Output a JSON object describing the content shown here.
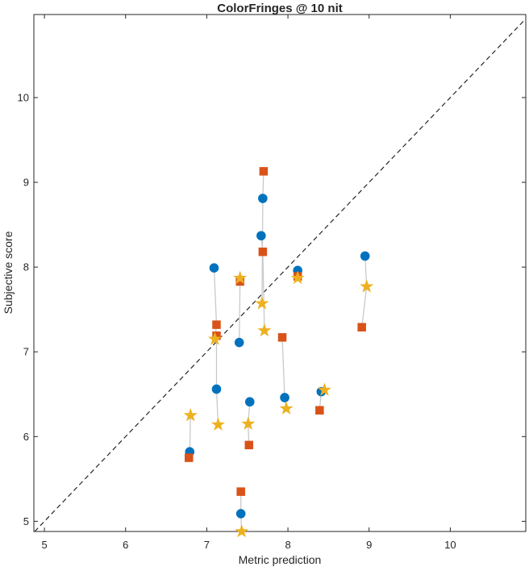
{
  "figure": {
    "title": "ColorFringes @ 10 nit",
    "xlabel": "Metric prediction",
    "ylabel": "Subjective score"
  },
  "chart_data": {
    "type": "scatter",
    "title": "ColorFringes @ 10 nit",
    "xlabel": "Metric prediction",
    "ylabel": "Subjective score",
    "xlim": [
      4.87,
      10.93
    ],
    "ylim": [
      4.88,
      10.98
    ],
    "x_ticks": [
      5,
      6,
      7,
      8,
      9,
      10
    ],
    "y_ticks": [
      5,
      6,
      7,
      8,
      9,
      10
    ],
    "grid": false,
    "legend": "none",
    "box": true,
    "identity_line": {
      "style": "dashed",
      "color": "#262626",
      "span": [
        4.88,
        10.93
      ]
    },
    "connector_color": "#c9c9c9",
    "series": [
      {
        "name": "blue-circle",
        "marker": "circle",
        "color": "#0072BD"
      },
      {
        "name": "orange-square",
        "marker": "square",
        "color": "#D95319"
      },
      {
        "name": "yellow-star",
        "marker": "star",
        "color": "#EDB120"
      }
    ],
    "groups": [
      {
        "points": [
          {
            "marker": "square",
            "x": 7.7,
            "y": 9.13
          },
          {
            "marker": "circle",
            "x": 7.69,
            "y": 8.81
          },
          {
            "marker": "star",
            "x": 7.68,
            "y": 7.57
          }
        ]
      },
      {
        "points": [
          {
            "marker": "circle",
            "x": 7.67,
            "y": 8.37
          },
          {
            "marker": "square",
            "x": 7.69,
            "y": 8.18
          },
          {
            "marker": "star",
            "x": 7.71,
            "y": 7.25
          }
        ]
      },
      {
        "points": [
          {
            "marker": "circle",
            "x": 7.09,
            "y": 7.99
          },
          {
            "marker": "square",
            "x": 7.12,
            "y": 7.32
          },
          {
            "marker": "star",
            "x": 7.1,
            "y": 7.15
          }
        ]
      },
      {
        "points": [
          {
            "marker": "square",
            "x": 7.12,
            "y": 7.19
          },
          {
            "marker": "circle",
            "x": 7.12,
            "y": 6.56
          },
          {
            "marker": "star",
            "x": 7.14,
            "y": 6.14
          }
        ]
      },
      {
        "points": [
          {
            "marker": "star",
            "x": 7.41,
            "y": 7.87
          },
          {
            "marker": "square",
            "x": 7.41,
            "y": 7.83
          },
          {
            "marker": "circle",
            "x": 7.4,
            "y": 7.11
          }
        ]
      },
      {
        "points": [
          {
            "marker": "circle",
            "x": 8.12,
            "y": 7.96
          },
          {
            "marker": "square",
            "x": 8.12,
            "y": 7.89
          },
          {
            "marker": "star",
            "x": 8.12,
            "y": 7.87
          }
        ]
      },
      {
        "points": [
          {
            "marker": "square",
            "x": 7.93,
            "y": 7.17
          },
          {
            "marker": "circle",
            "x": 7.96,
            "y": 6.46
          },
          {
            "marker": "star",
            "x": 7.98,
            "y": 6.33
          }
        ]
      },
      {
        "points": [
          {
            "marker": "circle",
            "x": 7.53,
            "y": 6.41
          },
          {
            "marker": "star",
            "x": 7.51,
            "y": 6.15
          },
          {
            "marker": "square",
            "x": 7.52,
            "y": 5.9
          }
        ]
      },
      {
        "points": [
          {
            "marker": "star",
            "x": 6.8,
            "y": 6.25
          },
          {
            "marker": "circle",
            "x": 6.79,
            "y": 5.82
          },
          {
            "marker": "square",
            "x": 6.78,
            "y": 5.75
          }
        ]
      },
      {
        "points": [
          {
            "marker": "star",
            "x": 8.45,
            "y": 6.55
          },
          {
            "marker": "circle",
            "x": 8.41,
            "y": 6.53
          },
          {
            "marker": "square",
            "x": 8.39,
            "y": 6.31
          }
        ]
      },
      {
        "points": [
          {
            "marker": "circle",
            "x": 8.95,
            "y": 8.13
          },
          {
            "marker": "star",
            "x": 8.97,
            "y": 7.77
          },
          {
            "marker": "square",
            "x": 8.91,
            "y": 7.29
          }
        ]
      },
      {
        "points": [
          {
            "marker": "square",
            "x": 7.42,
            "y": 5.35
          },
          {
            "marker": "circle",
            "x": 7.42,
            "y": 5.09
          },
          {
            "marker": "star",
            "x": 7.43,
            "y": 4.88
          }
        ]
      }
    ]
  }
}
